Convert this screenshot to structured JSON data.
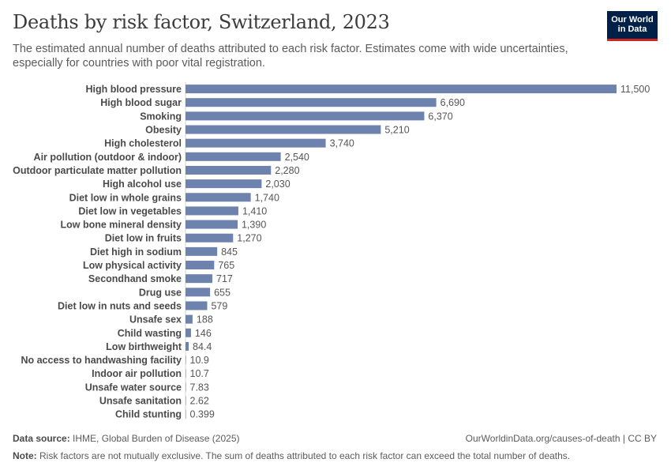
{
  "header": {
    "title": "Deaths by risk factor, Switzerland, 2023",
    "subtitle": "The estimated annual number of deaths attributed to each risk factor. Estimates come with wide uncertainties, especially for countries with poor vital registration.",
    "logo_line1": "Our World",
    "logo_line2": "in Data"
  },
  "footer": {
    "source_label": "Data source:",
    "source_text": "IHME, Global Burden of Disease (2025)",
    "url_text": "OurWorldinData.org/causes-of-death | CC BY",
    "note_label": "Note:",
    "note_text": "Risk factors are not mutually exclusive. The sum of deaths attributed to each risk factor can exceed the total number of deaths."
  },
  "colors": {
    "bar": "#6d82ad",
    "axis_line": "#d5d5d5",
    "logo_bg": "#002147",
    "logo_accent": "#ce261e"
  },
  "chart_data": {
    "type": "bar",
    "orientation": "horizontal",
    "title": "Deaths by risk factor, Switzerland, 2023",
    "categories": [
      "High blood pressure",
      "High blood sugar",
      "Smoking",
      "Obesity",
      "High cholesterol",
      "Air pollution (outdoor & indoor)",
      "Outdoor particulate matter pollution",
      "High alcohol use",
      "Diet low in whole grains",
      "Diet low in vegetables",
      "Low bone mineral density",
      "Diet low in fruits",
      "Diet high in sodium",
      "Low physical activity",
      "Secondhand smoke",
      "Drug use",
      "Diet low in nuts and seeds",
      "Unsafe sex",
      "Child wasting",
      "Low birthweight",
      "No access to handwashing facility",
      "Indoor air pollution",
      "Unsafe water source",
      "Unsafe sanitation",
      "Child stunting"
    ],
    "values": [
      11500,
      6690,
      6370,
      5210,
      3740,
      2540,
      2280,
      2030,
      1740,
      1410,
      1390,
      1270,
      845,
      765,
      717,
      655,
      579,
      188,
      146,
      84.4,
      10.9,
      10.7,
      7.83,
      2.62,
      0.399
    ],
    "value_labels": [
      "11,500",
      "6,690",
      "6,370",
      "5,210",
      "3,740",
      "2,540",
      "2,280",
      "2,030",
      "1,740",
      "1,410",
      "1,390",
      "1,270",
      "845",
      "765",
      "717",
      "655",
      "579",
      "188",
      "146",
      "84.4",
      "10.9",
      "10.7",
      "7.83",
      "2.62",
      "0.399"
    ],
    "xlim": [
      0,
      11500
    ],
    "grid": false,
    "legend": "none"
  }
}
